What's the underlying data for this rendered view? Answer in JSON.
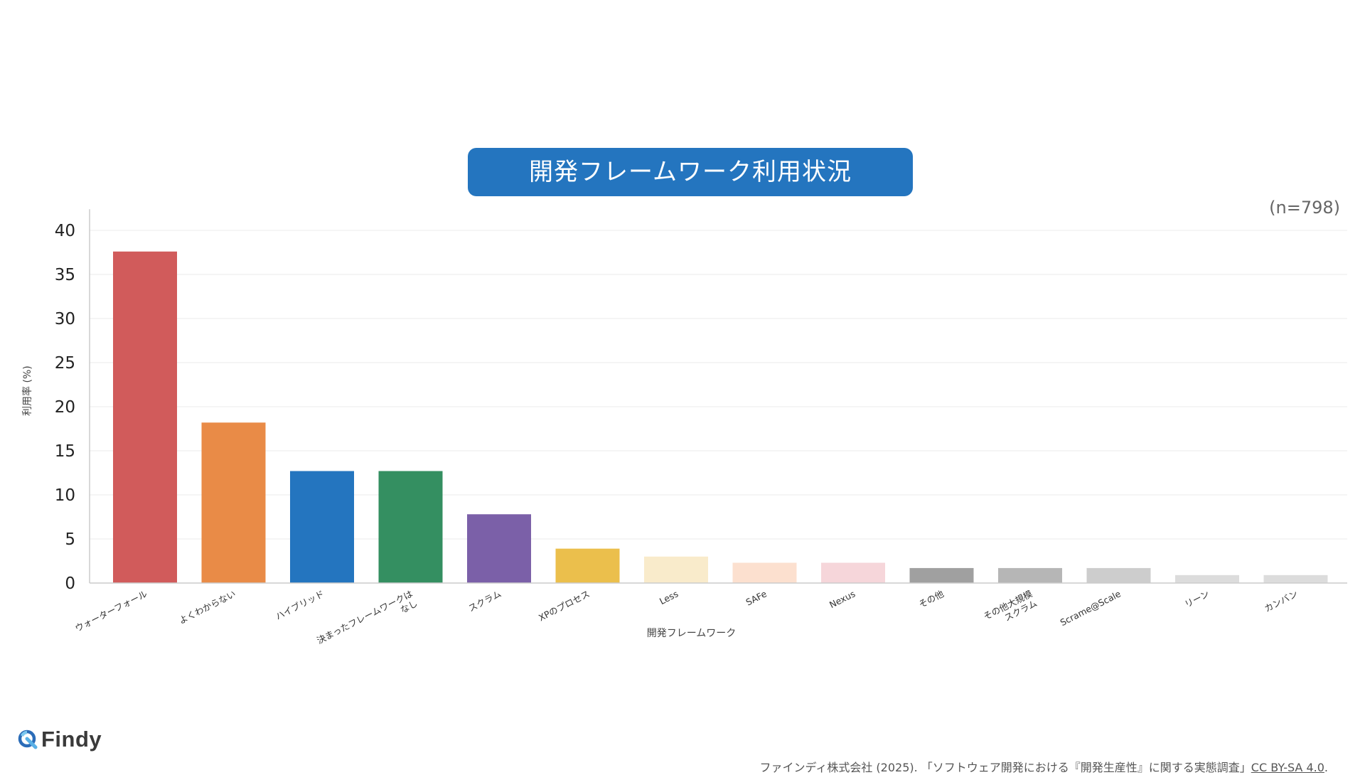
{
  "title": "開発フレームワーク利用状況",
  "sample_size": "(n=798)",
  "brand": "Findy",
  "footer": {
    "citation": "ファインディ株式会社 (2025). 「ソフトウェア開発における『開発生産性』に関する実態調査」",
    "license": "CC BY-SA 4.0",
    "tail": "."
  },
  "chart_data": {
    "type": "bar",
    "title": "開発フレームワーク利用状況",
    "xlabel": "開発フレームワーク",
    "ylabel": "利用率 (%)",
    "ylim": [
      0,
      42
    ],
    "yticks": [
      0,
      5,
      10,
      15,
      20,
      25,
      30,
      35,
      40
    ],
    "grid": true,
    "categories": [
      "ウォーターフォール",
      "よくわからない",
      "ハイブリッド",
      "決まったフレームワークは\nなし",
      "スクラム",
      "XPのプロセス",
      "Less",
      "SAFe",
      "Nexus",
      "その他",
      "その他大規模\nスクラム",
      "Scrame@Scale",
      "リーン",
      "カンバン"
    ],
    "values": [
      37.6,
      18.2,
      12.7,
      12.7,
      7.8,
      3.9,
      3.0,
      2.3,
      2.3,
      1.7,
      1.7,
      1.7,
      0.9,
      0.9
    ],
    "colors": [
      "#d15b5b",
      "#e98b47",
      "#2475bf",
      "#348f61",
      "#7b60a8",
      "#ebbf4c",
      "#f9ebcb",
      "#fce0cf",
      "#f6d6da",
      "#a0a0a0",
      "#b6b6b6",
      "#cdcdcd",
      "#dcdcdc",
      "#dcdcdc"
    ]
  }
}
